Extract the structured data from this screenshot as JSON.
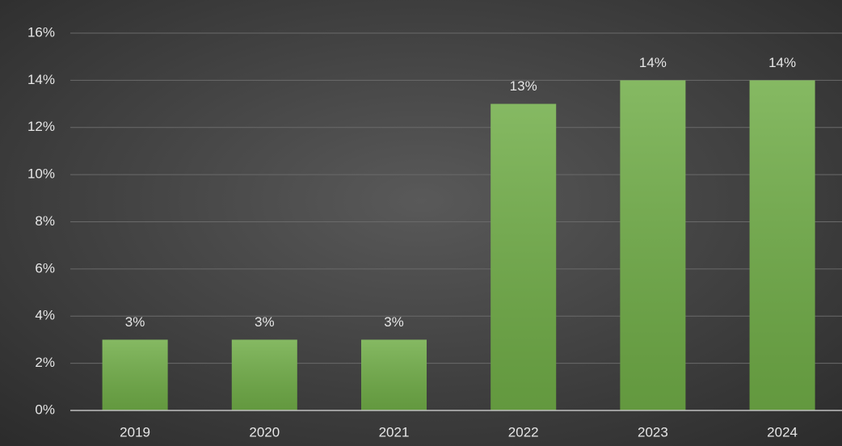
{
  "chart_data": {
    "type": "bar",
    "categories": [
      "2019",
      "2020",
      "2021",
      "2022",
      "2023",
      "2024"
    ],
    "values": [
      3,
      3,
      3,
      13,
      14,
      14
    ],
    "value_labels": [
      "3%",
      "3%",
      "3%",
      "13%",
      "14%",
      "14%"
    ],
    "color": "#70ad47",
    "ylim": [
      0,
      16
    ],
    "yticks": [
      {
        "value": 0,
        "label": "0%"
      },
      {
        "value": 2,
        "label": "2%"
      },
      {
        "value": 4,
        "label": "4%"
      },
      {
        "value": 6,
        "label": "6%"
      },
      {
        "value": 8,
        "label": "8%"
      },
      {
        "value": 10,
        "label": "10%"
      },
      {
        "value": 12,
        "label": "12%"
      },
      {
        "value": 14,
        "label": "14%"
      },
      {
        "value": 16,
        "label": "16%"
      }
    ],
    "grid": true
  }
}
